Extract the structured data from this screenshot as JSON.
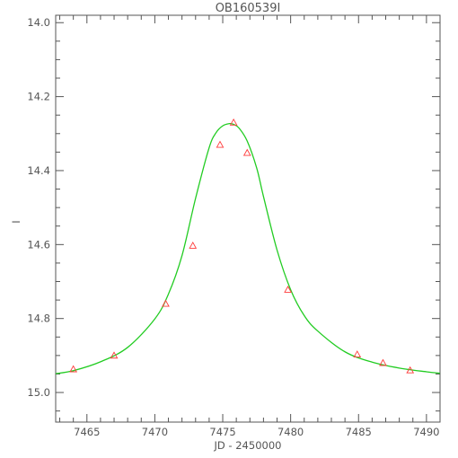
{
  "chart_data": {
    "type": "scatter",
    "title": "OB160539I",
    "xlabel": "JD - 2450000",
    "ylabel": "I",
    "xlim": [
      7462.7,
      7491.0
    ],
    "ylim": [
      15.08,
      13.98
    ],
    "y_inverted": true,
    "grid": false,
    "xticks": [
      7465,
      7470,
      7475,
      7480,
      7485,
      7490
    ],
    "yticks": [
      14.0,
      14.2,
      14.4,
      14.6,
      14.8,
      15.0
    ],
    "ytick_labels": [
      "14.0",
      "14.2",
      "14.4",
      "14.6",
      "14.8",
      "15.0"
    ],
    "series": [
      {
        "kind": "points",
        "marker": "triangle",
        "color": "#ff3b3b",
        "x": [
          7464.0,
          7467.0,
          7470.8,
          7472.8,
          7474.8,
          7475.8,
          7476.8,
          7479.8,
          7484.9,
          7486.8,
          7488.8
        ],
        "y": [
          14.937,
          14.9,
          14.76,
          14.603,
          14.33,
          14.27,
          14.352,
          14.722,
          14.897,
          14.92,
          14.94
        ]
      },
      {
        "kind": "model-curve",
        "color": "#22cc22",
        "x": [
          7462.7,
          7464.0,
          7466.0,
          7468.0,
          7470.0,
          7471.0,
          7472.0,
          7473.0,
          7474.0,
          7474.5,
          7475.0,
          7475.5,
          7475.8,
          7476.2,
          7476.8,
          7477.5,
          7478.0,
          7479.0,
          7480.0,
          7481.0,
          7482.0,
          7484.0,
          7486.0,
          7488.0,
          7490.0,
          7491.0
        ],
        "y": [
          14.949,
          14.941,
          14.917,
          14.878,
          14.801,
          14.734,
          14.63,
          14.475,
          14.338,
          14.298,
          14.279,
          14.273,
          14.275,
          14.285,
          14.32,
          14.393,
          14.47,
          14.615,
          14.722,
          14.792,
          14.834,
          14.89,
          14.918,
          14.934,
          14.944,
          14.948
        ]
      }
    ]
  }
}
